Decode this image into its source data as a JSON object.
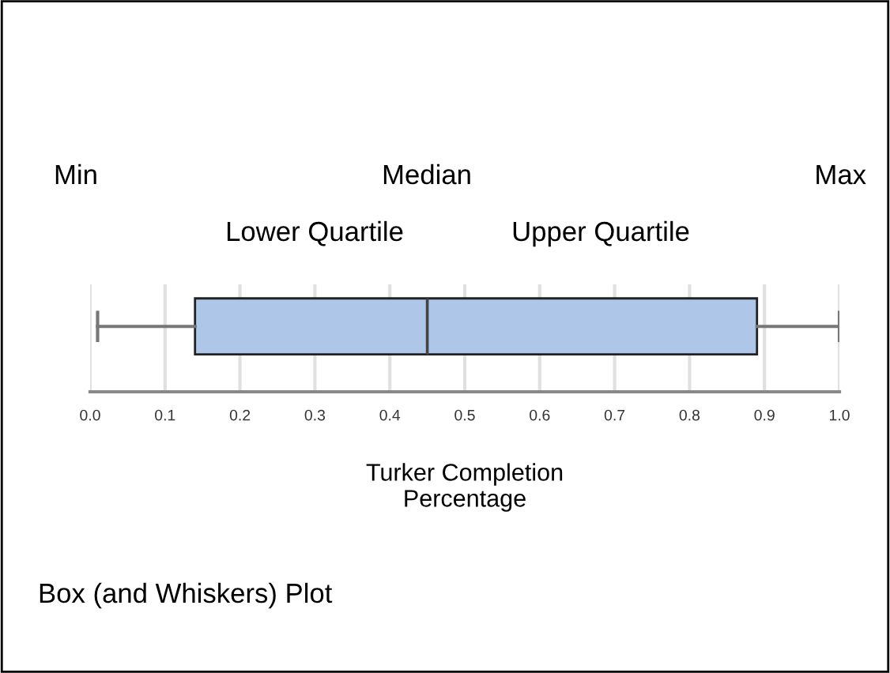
{
  "chart_data": {
    "type": "box",
    "orientation": "horizontal",
    "categories": [
      null
    ],
    "boxes": [
      {
        "low": 0.01,
        "q1": 0.14,
        "median": 0.45,
        "q3": 0.89,
        "high": 1.0
      }
    ],
    "color": "#aec6e8",
    "xlabel": "Turker Completion\nPercentage",
    "xlim": [
      0,
      1
    ],
    "xticks": [
      {
        "value": 0,
        "label": "0.0"
      },
      0.1,
      0.2,
      0.3,
      0.4,
      0.5,
      0.6,
      0.7,
      0.8,
      0.9,
      {
        "value": 1,
        "label": "1.0"
      }
    ],
    "grid": "x",
    "annotations": [
      "Min",
      "Median",
      "Max",
      "Lower Quartile",
      "Upper Quartile",
      "Box (and Whiskers) Plot"
    ]
  }
}
